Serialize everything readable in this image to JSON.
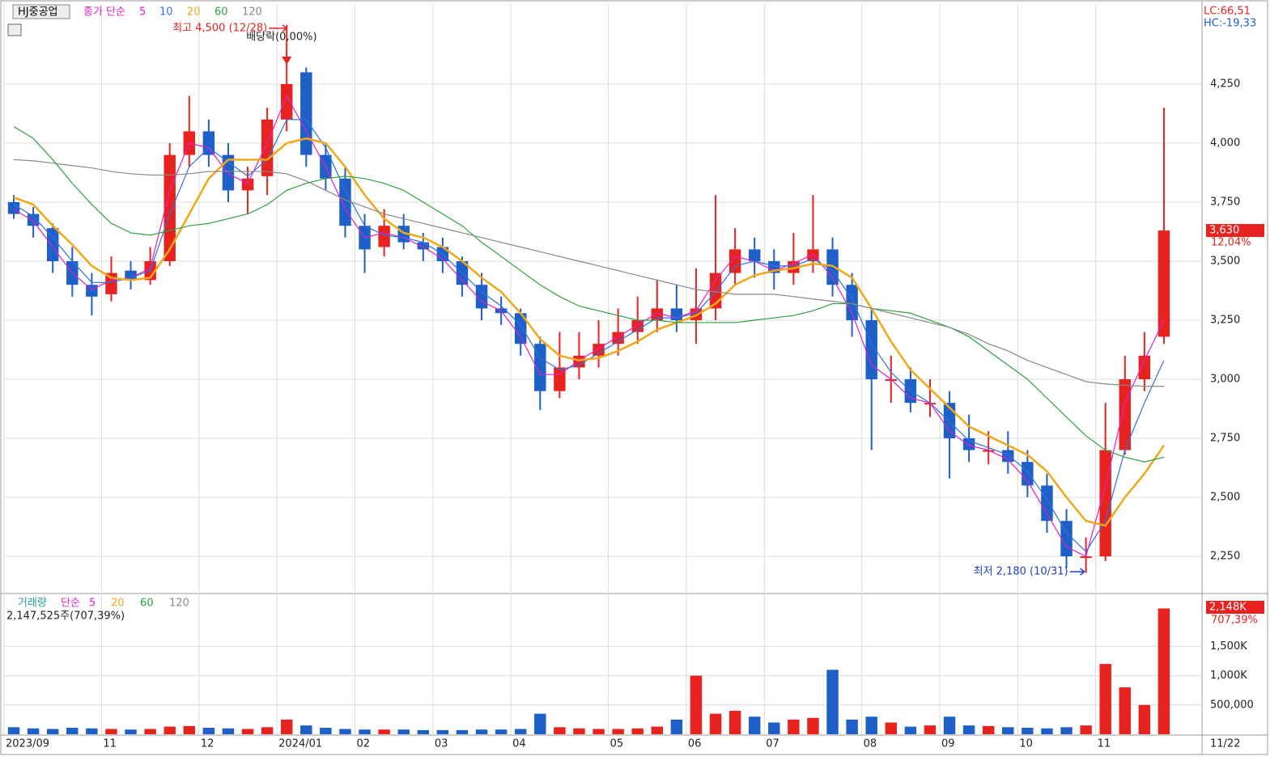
{
  "chart_data": [
    {
      "type": "candlestick",
      "title": "HJ중공업",
      "legend_label": "종가 단순",
      "categories": [
        "2023/09",
        null,
        null,
        null,
        null,
        "11",
        null,
        null,
        null,
        null,
        "12",
        null,
        null,
        null,
        "2024/01",
        null,
        null,
        null,
        "02",
        null,
        null,
        null,
        "03",
        null,
        null,
        null,
        "04",
        null,
        null,
        null,
        null,
        "05",
        null,
        null,
        null,
        "06",
        null,
        null,
        null,
        "07",
        null,
        null,
        null,
        null,
        "08",
        null,
        null,
        null,
        "09",
        null,
        null,
        null,
        "10",
        null,
        null,
        null,
        "11",
        null,
        null,
        null
      ],
      "last_date": "11/22",
      "open": [
        3750,
        3700,
        3640,
        3500,
        3400,
        3360,
        3460,
        3420,
        3500,
        3950,
        4050,
        3950,
        3800,
        3860,
        4100,
        4300,
        3950,
        3850,
        3650,
        3560,
        3650,
        3580,
        3560,
        3500,
        3400,
        3300,
        3280,
        3150,
        2950,
        3050,
        3100,
        3150,
        3200,
        3250,
        3300,
        3250,
        3300,
        3450,
        3550,
        3500,
        3450,
        3500,
        3550,
        3400,
        3250,
        3000,
        3000,
        2900,
        2900,
        2750,
        2700,
        2700,
        2650,
        2550,
        2400,
        2250,
        2250,
        2700,
        3000,
        3180
      ],
      "high": [
        3780,
        3730,
        3660,
        3560,
        3450,
        3520,
        3500,
        3560,
        4000,
        4200,
        4100,
        4000,
        3900,
        4150,
        4500,
        4320,
        4000,
        3900,
        3700,
        3720,
        3700,
        3620,
        3600,
        3520,
        3450,
        3350,
        3300,
        3180,
        3200,
        3200,
        3250,
        3300,
        3350,
        3420,
        3400,
        3470,
        3780,
        3640,
        3600,
        3550,
        3620,
        3780,
        3600,
        3450,
        3300,
        3100,
        3050,
        3000,
        2950,
        2850,
        2780,
        2780,
        2700,
        2600,
        2450,
        2330,
        2900,
        3100,
        3200,
        4150
      ],
      "low": [
        3680,
        3600,
        3450,
        3350,
        3270,
        3330,
        3380,
        3400,
        3480,
        3900,
        3900,
        3750,
        3700,
        3780,
        4050,
        3900,
        3800,
        3600,
        3450,
        3520,
        3550,
        3500,
        3450,
        3350,
        3250,
        3230,
        3100,
        2870,
        2920,
        3000,
        3050,
        3100,
        3150,
        3200,
        3200,
        3150,
        3250,
        3400,
        3430,
        3380,
        3400,
        3450,
        3350,
        3180,
        2700,
        2900,
        2860,
        2840,
        2580,
        2650,
        2640,
        2600,
        2500,
        2350,
        2200,
        2180,
        2230,
        2680,
        2950,
        3150
      ],
      "close": [
        3700,
        3650,
        3500,
        3400,
        3350,
        3450,
        3420,
        3500,
        3950,
        4050,
        3950,
        3800,
        3850,
        4100,
        4250,
        3950,
        3850,
        3650,
        3550,
        3650,
        3580,
        3550,
        3500,
        3400,
        3300,
        3280,
        3150,
        2950,
        3050,
        3100,
        3150,
        3200,
        3250,
        3300,
        3250,
        3300,
        3450,
        3550,
        3500,
        3450,
        3500,
        3550,
        3400,
        3250,
        3000,
        3000,
        2900,
        2900,
        2750,
        2700,
        2700,
        2650,
        2550,
        2400,
        2250,
        2250,
        2700,
        3000,
        3100,
        3630
      ],
      "up_color": "#e8231f",
      "down_color": "#1f5fc8",
      "series": [
        {
          "name": "5",
          "color": "#e020c8",
          "values": [
            3720,
            3670,
            3560,
            3450,
            3380,
            3420,
            3430,
            3470,
            3800,
            4000,
            3980,
            3870,
            3830,
            4000,
            4200,
            4050,
            3900,
            3720,
            3600,
            3620,
            3600,
            3560,
            3510,
            3420,
            3330,
            3290,
            3180,
            3020,
            3020,
            3080,
            3130,
            3180,
            3230,
            3280,
            3260,
            3290,
            3420,
            3520,
            3500,
            3460,
            3490,
            3530,
            3430,
            3280,
            3060,
            3000,
            2920,
            2900,
            2780,
            2720,
            2700,
            2660,
            2570,
            2430,
            2290,
            2250,
            2550,
            2900,
            3080,
            3250
          ]
        },
        {
          "name": "10",
          "color": "#2f6fe0",
          "values": [
            3740,
            3690,
            3600,
            3500,
            3410,
            3410,
            3430,
            3460,
            3700,
            3900,
            3980,
            3920,
            3860,
            3930,
            4100,
            4100,
            3980,
            3800,
            3650,
            3610,
            3600,
            3580,
            3530,
            3450,
            3370,
            3310,
            3230,
            3090,
            3040,
            3060,
            3110,
            3160,
            3210,
            3260,
            3260,
            3280,
            3370,
            3480,
            3500,
            3480,
            3480,
            3510,
            3460,
            3340,
            3150,
            3030,
            2950,
            2900,
            2820,
            2740,
            2710,
            2680,
            2610,
            2490,
            2350,
            2270,
            2400,
            2700,
            2900,
            3080
          ]
        },
        {
          "name": "20",
          "color": "#f0a818",
          "values": [
            3770,
            3740,
            3650,
            3570,
            3480,
            3430,
            3420,
            3430,
            3550,
            3700,
            3850,
            3930,
            3930,
            3930,
            4000,
            4020,
            4000,
            3900,
            3780,
            3680,
            3620,
            3600,
            3560,
            3500,
            3430,
            3370,
            3280,
            3170,
            3100,
            3080,
            3090,
            3120,
            3160,
            3210,
            3240,
            3270,
            3320,
            3400,
            3440,
            3460,
            3470,
            3490,
            3480,
            3430,
            3300,
            3160,
            3040,
            2960,
            2880,
            2800,
            2760,
            2720,
            2680,
            2610,
            2500,
            2400,
            2380,
            2500,
            2600,
            2720
          ]
        },
        {
          "name": "60",
          "color": "#2ea043",
          "values": [
            4070,
            4020,
            3930,
            3830,
            3740,
            3660,
            3620,
            3610,
            3630,
            3650,
            3660,
            3680,
            3700,
            3740,
            3800,
            3830,
            3850,
            3860,
            3850,
            3830,
            3800,
            3750,
            3700,
            3650,
            3580,
            3520,
            3460,
            3400,
            3350,
            3310,
            3290,
            3270,
            3250,
            3250,
            3240,
            3240,
            3240,
            3240,
            3250,
            3260,
            3270,
            3290,
            3320,
            3320,
            3300,
            3290,
            3280,
            3250,
            3220,
            3180,
            3120,
            3060,
            3000,
            2920,
            2840,
            2760,
            2700,
            2670,
            2650,
            2670
          ]
        },
        {
          "name": "120",
          "color": "#888888",
          "values": [
            3930,
            3925,
            3915,
            3905,
            3895,
            3880,
            3870,
            3865,
            3865,
            3870,
            3880,
            3880,
            3880,
            3880,
            3870,
            3840,
            3800,
            3760,
            3730,
            3700,
            3680,
            3660,
            3640,
            3620,
            3600,
            3580,
            3560,
            3540,
            3520,
            3500,
            3480,
            3460,
            3440,
            3420,
            3400,
            3380,
            3370,
            3360,
            3360,
            3360,
            3350,
            3340,
            3330,
            3320,
            3300,
            3280,
            3260,
            3240,
            3220,
            3190,
            3150,
            3120,
            3080,
            3050,
            3020,
            2990,
            2980,
            2975,
            2970,
            2970
          ]
        }
      ],
      "ylim": [
        2096,
        4589
      ],
      "yticks": [
        {
          "value": 2250,
          "label": "2,250"
        },
        {
          "value": 2500,
          "label": "2,500"
        },
        {
          "value": 2750,
          "label": "2,750"
        },
        {
          "value": 3000,
          "label": "3,000"
        },
        {
          "value": 3250,
          "label": "3,250"
        },
        {
          "value": 3500,
          "label": "3,500"
        },
        {
          "value": 3750,
          "label": "3,750"
        },
        {
          "value": 4000,
          "label": "4,000"
        },
        {
          "value": 4250,
          "label": "4,250"
        }
      ],
      "last_price": {
        "value": 3630,
        "label": "3,630"
      },
      "last_change": "12,04%",
      "high_note": "최고 4,500 (12/28)",
      "dividend_note": "배당락(0,00%)",
      "low_note": "최저 2,180 (10/31)",
      "lc": "LC:66,51",
      "hc": "HC:-19,33",
      "grid": true
    },
    {
      "type": "volume",
      "title": "거래량",
      "legend_label": "단순",
      "legend": [
        {
          "name": "5",
          "color": "#e020c8"
        },
        {
          "name": "20",
          "color": "#f0a818"
        },
        {
          "name": "60",
          "color": "#2ea043"
        },
        {
          "name": "120",
          "color": "#888888"
        }
      ],
      "info": "2,147,525주(707,39%)",
      "values": [
        120000,
        100000,
        90000,
        110000,
        100000,
        90000,
        80000,
        90000,
        130000,
        140000,
        110000,
        100000,
        90000,
        120000,
        250000,
        150000,
        110000,
        90000,
        80000,
        80000,
        80000,
        70000,
        70000,
        70000,
        80000,
        80000,
        90000,
        350000,
        120000,
        100000,
        90000,
        90000,
        100000,
        130000,
        250000,
        1000000,
        350000,
        400000,
        300000,
        200000,
        250000,
        280000,
        1100000,
        250000,
        300000,
        200000,
        130000,
        150000,
        300000,
        150000,
        140000,
        120000,
        110000,
        100000,
        120000,
        150000,
        1200000,
        800000,
        500000,
        2147525
      ],
      "ylim": [
        0,
        2347000
      ],
      "yticks": [
        {
          "value": 500000,
          "label": "500,000"
        },
        {
          "value": 1000000,
          "label": "1,000K"
        },
        {
          "value": 1500000,
          "label": "1,500K"
        }
      ],
      "last_value": {
        "value": 2147525,
        "label": "2,148K"
      },
      "last_change": "707,39%",
      "grid": true
    }
  ]
}
